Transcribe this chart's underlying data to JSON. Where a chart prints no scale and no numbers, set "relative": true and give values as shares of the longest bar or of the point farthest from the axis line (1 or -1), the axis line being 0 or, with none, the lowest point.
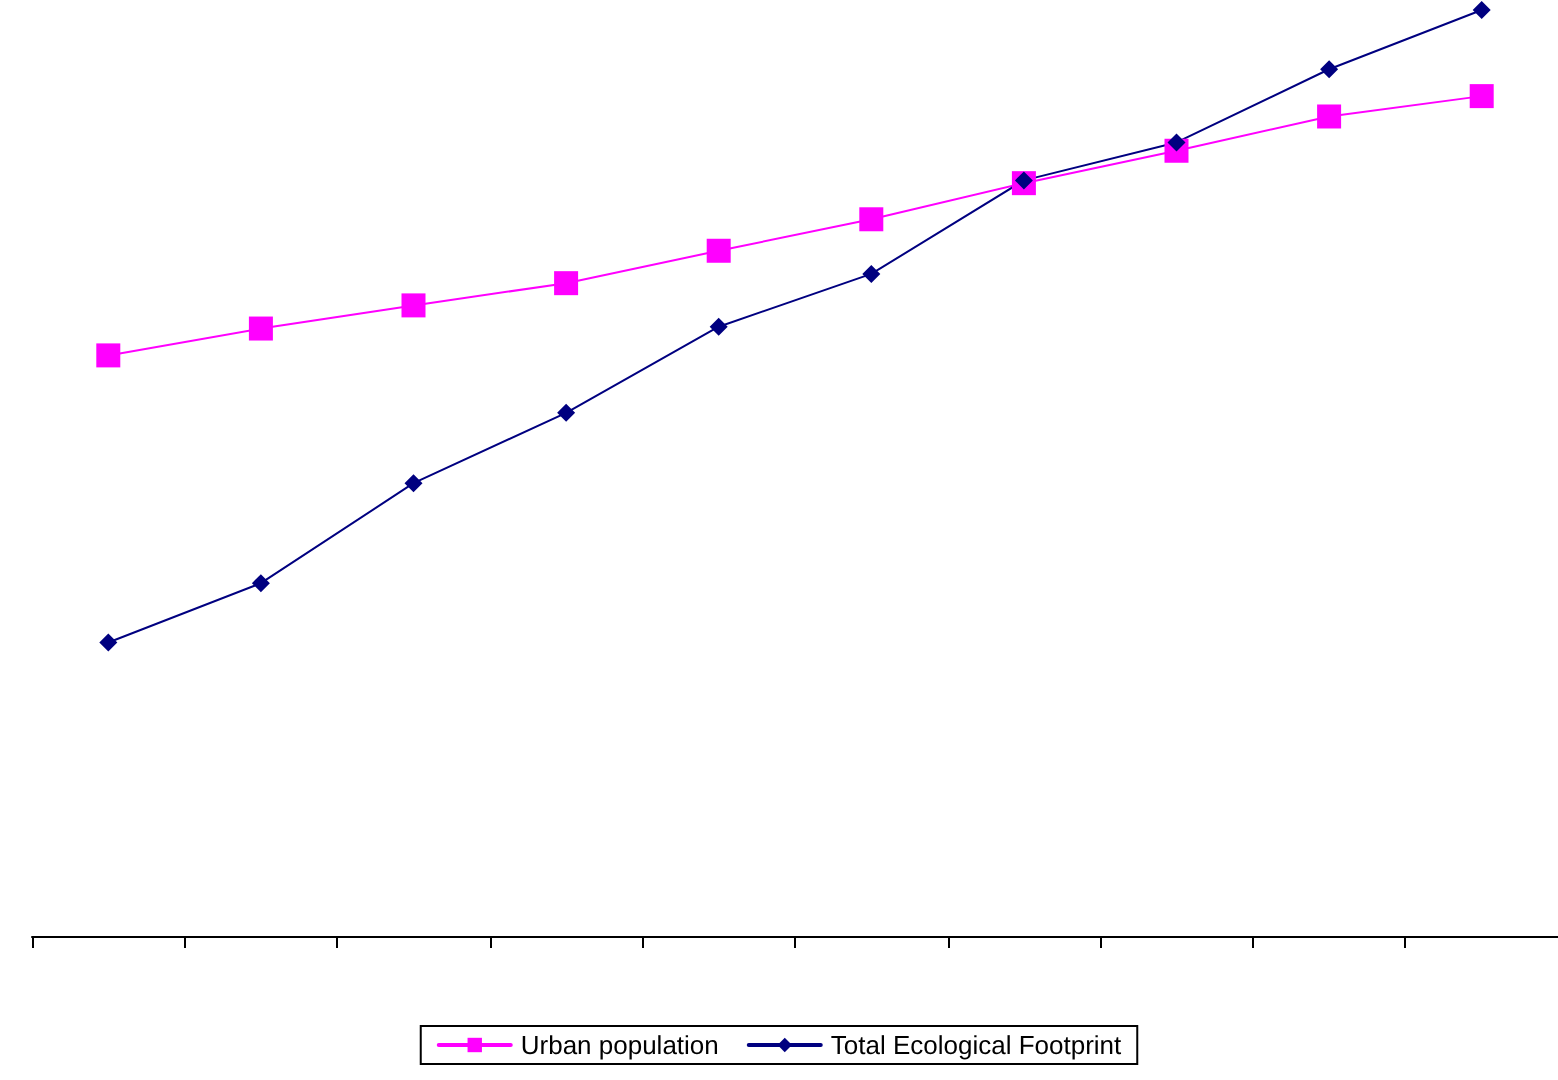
{
  "chart_data": {
    "type": "line",
    "relative": true,
    "categories": [
      null,
      null,
      null,
      null,
      null,
      null,
      null,
      null,
      null,
      null
    ],
    "series": [
      {
        "name": "Urban population",
        "color": "#ff00ff",
        "marker": "square",
        "values": [
          0.627,
          0.656,
          0.681,
          0.705,
          0.74,
          0.774,
          0.813,
          0.848,
          0.885,
          0.907
        ]
      },
      {
        "name": "Total Ecological Footprint",
        "color": "#000080",
        "marker": "diamond",
        "values": [
          0.317,
          0.381,
          0.489,
          0.565,
          0.658,
          0.715,
          0.816,
          0.857,
          0.936,
          1
        ]
      }
    ],
    "legend": "bottom",
    "grid": false
  }
}
